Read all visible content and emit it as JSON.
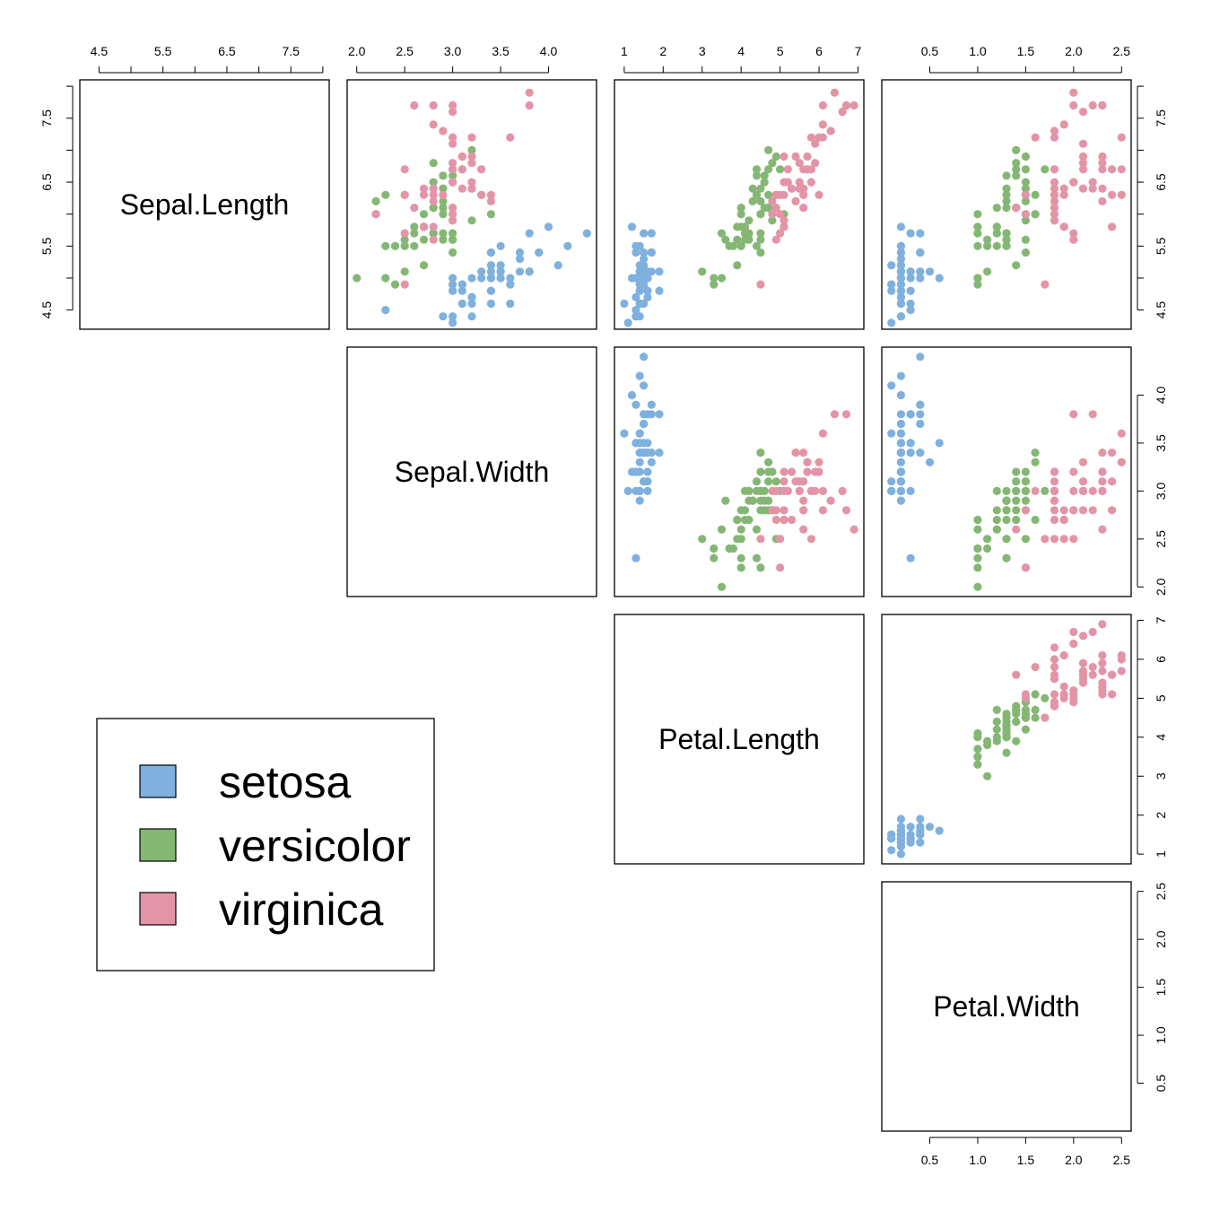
{
  "chart_data": {
    "type": "scatter",
    "title": "",
    "variables": [
      {
        "name": "Sepal.Length",
        "lim": [
          4.2,
          8.1
        ],
        "ticks": [
          "4.5",
          "5.5",
          "6.5",
          "7.5"
        ],
        "minor_ticks": [
          4.5,
          5,
          5.5,
          6,
          6.5,
          7,
          7.5,
          8
        ]
      },
      {
        "name": "Sepal.Width",
        "lim": [
          1.9,
          4.5
        ],
        "ticks": [
          "2.0",
          "2.5",
          "3.0",
          "3.5",
          "4.0"
        ],
        "minor_ticks": [
          2,
          2.5,
          3,
          3.5,
          4
        ]
      },
      {
        "name": "Petal.Length",
        "lim": [
          0.75,
          7.15
        ],
        "ticks": [
          "1",
          "2",
          "3",
          "4",
          "5",
          "6",
          "7"
        ],
        "minor_ticks": [
          1,
          2,
          3,
          4,
          5,
          6,
          7
        ]
      },
      {
        "name": "Petal.Width",
        "lim": [
          0.0,
          2.6
        ],
        "ticks": [
          "0.5",
          "1.0",
          "1.5",
          "2.0",
          "2.5"
        ],
        "minor_ticks": [
          0.5,
          1,
          1.5,
          2,
          2.5
        ]
      }
    ],
    "layout": "upper-triangle pairs; variable names on diagonal",
    "legend": {
      "position": "bottom-left",
      "entries": [
        {
          "name": "setosa",
          "color": "#7FB0DE"
        },
        {
          "name": "versicolor",
          "color": "#85B774"
        },
        {
          "name": "virginica",
          "color": "#E394A7"
        }
      ]
    },
    "point_columns": [
      "Sepal.Length",
      "Sepal.Width",
      "Petal.Length",
      "Petal.Width",
      "species_index"
    ],
    "points": [
      [
        5.1,
        3.5,
        1.4,
        0.2,
        0
      ],
      [
        4.9,
        3.0,
        1.4,
        0.2,
        0
      ],
      [
        4.7,
        3.2,
        1.3,
        0.2,
        0
      ],
      [
        4.6,
        3.1,
        1.5,
        0.2,
        0
      ],
      [
        5.0,
        3.6,
        1.4,
        0.2,
        0
      ],
      [
        5.4,
        3.9,
        1.7,
        0.4,
        0
      ],
      [
        4.6,
        3.4,
        1.4,
        0.3,
        0
      ],
      [
        5.0,
        3.4,
        1.5,
        0.2,
        0
      ],
      [
        4.4,
        2.9,
        1.4,
        0.2,
        0
      ],
      [
        4.9,
        3.1,
        1.5,
        0.1,
        0
      ],
      [
        5.4,
        3.7,
        1.5,
        0.2,
        0
      ],
      [
        4.8,
        3.4,
        1.6,
        0.2,
        0
      ],
      [
        4.8,
        3.0,
        1.4,
        0.1,
        0
      ],
      [
        4.3,
        3.0,
        1.1,
        0.1,
        0
      ],
      [
        5.8,
        4.0,
        1.2,
        0.2,
        0
      ],
      [
        5.7,
        4.4,
        1.5,
        0.4,
        0
      ],
      [
        5.4,
        3.9,
        1.3,
        0.4,
        0
      ],
      [
        5.1,
        3.5,
        1.4,
        0.3,
        0
      ],
      [
        5.7,
        3.8,
        1.7,
        0.3,
        0
      ],
      [
        5.1,
        3.8,
        1.5,
        0.3,
        0
      ],
      [
        5.4,
        3.4,
        1.7,
        0.2,
        0
      ],
      [
        5.1,
        3.7,
        1.5,
        0.4,
        0
      ],
      [
        4.6,
        3.6,
        1.0,
        0.2,
        0
      ],
      [
        5.1,
        3.3,
        1.7,
        0.5,
        0
      ],
      [
        4.8,
        3.4,
        1.9,
        0.2,
        0
      ],
      [
        5.0,
        3.0,
        1.6,
        0.2,
        0
      ],
      [
        5.0,
        3.4,
        1.6,
        0.4,
        0
      ],
      [
        5.2,
        3.5,
        1.5,
        0.2,
        0
      ],
      [
        5.2,
        3.4,
        1.4,
        0.2,
        0
      ],
      [
        4.7,
        3.2,
        1.6,
        0.2,
        0
      ],
      [
        4.8,
        3.1,
        1.6,
        0.2,
        0
      ],
      [
        5.4,
        3.4,
        1.5,
        0.4,
        0
      ],
      [
        5.2,
        4.1,
        1.5,
        0.1,
        0
      ],
      [
        5.5,
        4.2,
        1.4,
        0.2,
        0
      ],
      [
        4.9,
        3.1,
        1.5,
        0.2,
        0
      ],
      [
        5.0,
        3.2,
        1.2,
        0.2,
        0
      ],
      [
        5.5,
        3.5,
        1.3,
        0.2,
        0
      ],
      [
        4.9,
        3.6,
        1.4,
        0.1,
        0
      ],
      [
        4.4,
        3.0,
        1.3,
        0.2,
        0
      ],
      [
        5.1,
        3.4,
        1.5,
        0.2,
        0
      ],
      [
        5.0,
        3.5,
        1.3,
        0.3,
        0
      ],
      [
        4.5,
        2.3,
        1.3,
        0.3,
        0
      ],
      [
        4.4,
        3.2,
        1.3,
        0.2,
        0
      ],
      [
        5.0,
        3.5,
        1.6,
        0.6,
        0
      ],
      [
        5.1,
        3.8,
        1.9,
        0.4,
        0
      ],
      [
        4.8,
        3.0,
        1.4,
        0.3,
        0
      ],
      [
        5.1,
        3.8,
        1.6,
        0.2,
        0
      ],
      [
        4.6,
        3.2,
        1.4,
        0.2,
        0
      ],
      [
        5.3,
        3.7,
        1.5,
        0.2,
        0
      ],
      [
        5.0,
        3.3,
        1.4,
        0.2,
        0
      ],
      [
        7.0,
        3.2,
        4.7,
        1.4,
        1
      ],
      [
        6.4,
        3.2,
        4.5,
        1.5,
        1
      ],
      [
        6.9,
        3.1,
        4.9,
        1.5,
        1
      ],
      [
        5.5,
        2.3,
        4.0,
        1.3,
        1
      ],
      [
        6.5,
        2.8,
        4.6,
        1.5,
        1
      ],
      [
        5.7,
        2.8,
        4.5,
        1.3,
        1
      ],
      [
        6.3,
        3.3,
        4.7,
        1.6,
        1
      ],
      [
        4.9,
        2.4,
        3.3,
        1.0,
        1
      ],
      [
        6.6,
        2.9,
        4.6,
        1.3,
        1
      ],
      [
        5.2,
        2.7,
        3.9,
        1.4,
        1
      ],
      [
        5.0,
        2.0,
        3.5,
        1.0,
        1
      ],
      [
        5.9,
        3.0,
        4.2,
        1.5,
        1
      ],
      [
        6.0,
        2.2,
        4.0,
        1.0,
        1
      ],
      [
        6.1,
        2.9,
        4.7,
        1.4,
        1
      ],
      [
        5.6,
        2.9,
        3.6,
        1.3,
        1
      ],
      [
        6.7,
        3.1,
        4.4,
        1.4,
        1
      ],
      [
        5.6,
        3.0,
        4.5,
        1.5,
        1
      ],
      [
        5.8,
        2.7,
        4.1,
        1.0,
        1
      ],
      [
        6.2,
        2.2,
        4.5,
        1.5,
        1
      ],
      [
        5.6,
        2.5,
        3.9,
        1.1,
        1
      ],
      [
        5.9,
        3.2,
        4.8,
        1.8,
        1
      ],
      [
        6.1,
        2.8,
        4.0,
        1.3,
        1
      ],
      [
        6.3,
        2.5,
        4.9,
        1.5,
        1
      ],
      [
        6.1,
        2.8,
        4.7,
        1.2,
        1
      ],
      [
        6.4,
        2.9,
        4.3,
        1.3,
        1
      ],
      [
        6.6,
        3.0,
        4.4,
        1.4,
        1
      ],
      [
        6.8,
        2.8,
        4.8,
        1.4,
        1
      ],
      [
        6.7,
        3.0,
        5.0,
        1.7,
        1
      ],
      [
        6.0,
        2.9,
        4.5,
        1.5,
        1
      ],
      [
        5.7,
        2.6,
        3.5,
        1.0,
        1
      ],
      [
        5.5,
        2.4,
        3.8,
        1.1,
        1
      ],
      [
        5.5,
        2.4,
        3.7,
        1.0,
        1
      ],
      [
        5.8,
        2.7,
        3.9,
        1.2,
        1
      ],
      [
        6.0,
        2.7,
        5.1,
        1.6,
        1
      ],
      [
        5.4,
        3.0,
        4.5,
        1.5,
        1
      ],
      [
        6.0,
        3.4,
        4.5,
        1.6,
        1
      ],
      [
        6.7,
        3.1,
        4.7,
        1.5,
        1
      ],
      [
        6.3,
        2.3,
        4.4,
        1.3,
        1
      ],
      [
        5.6,
        3.0,
        4.1,
        1.3,
        1
      ],
      [
        5.5,
        2.5,
        4.0,
        1.3,
        1
      ],
      [
        5.5,
        2.6,
        4.4,
        1.2,
        1
      ],
      [
        6.1,
        3.0,
        4.6,
        1.4,
        1
      ],
      [
        5.8,
        2.6,
        4.0,
        1.2,
        1
      ],
      [
        5.0,
        2.3,
        3.3,
        1.0,
        1
      ],
      [
        5.6,
        2.7,
        4.2,
        1.3,
        1
      ],
      [
        5.7,
        3.0,
        4.2,
        1.2,
        1
      ],
      [
        5.7,
        2.9,
        4.2,
        1.3,
        1
      ],
      [
        6.2,
        2.9,
        4.3,
        1.3,
        1
      ],
      [
        5.1,
        2.5,
        3.0,
        1.1,
        1
      ],
      [
        5.7,
        2.8,
        4.1,
        1.3,
        1
      ],
      [
        6.3,
        3.3,
        6.0,
        2.5,
        2
      ],
      [
        5.8,
        2.7,
        5.1,
        1.9,
        2
      ],
      [
        7.1,
        3.0,
        5.9,
        2.1,
        2
      ],
      [
        6.3,
        2.9,
        5.6,
        1.8,
        2
      ],
      [
        6.5,
        3.0,
        5.8,
        2.2,
        2
      ],
      [
        7.6,
        3.0,
        6.6,
        2.1,
        2
      ],
      [
        4.9,
        2.5,
        4.5,
        1.7,
        2
      ],
      [
        7.3,
        2.9,
        6.3,
        1.8,
        2
      ],
      [
        6.7,
        2.5,
        5.8,
        1.8,
        2
      ],
      [
        7.2,
        3.6,
        6.1,
        2.5,
        2
      ],
      [
        6.5,
        3.2,
        5.1,
        2.0,
        2
      ],
      [
        6.4,
        2.7,
        5.3,
        1.9,
        2
      ],
      [
        6.8,
        3.0,
        5.5,
        2.1,
        2
      ],
      [
        5.7,
        2.5,
        5.0,
        2.0,
        2
      ],
      [
        5.8,
        2.8,
        5.1,
        2.4,
        2
      ],
      [
        6.4,
        3.2,
        5.3,
        2.3,
        2
      ],
      [
        6.5,
        3.0,
        5.5,
        1.8,
        2
      ],
      [
        7.7,
        3.8,
        6.7,
        2.2,
        2
      ],
      [
        7.7,
        2.6,
        6.9,
        2.3,
        2
      ],
      [
        6.0,
        2.2,
        5.0,
        1.5,
        2
      ],
      [
        6.9,
        3.2,
        5.7,
        2.3,
        2
      ],
      [
        5.6,
        2.8,
        4.9,
        2.0,
        2
      ],
      [
        7.7,
        2.8,
        6.7,
        2.0,
        2
      ],
      [
        6.3,
        2.7,
        4.9,
        1.8,
        2
      ],
      [
        6.7,
        3.3,
        5.7,
        2.1,
        2
      ],
      [
        7.2,
        3.2,
        6.0,
        1.8,
        2
      ],
      [
        6.2,
        2.8,
        4.8,
        1.8,
        2
      ],
      [
        6.1,
        3.0,
        4.9,
        1.8,
        2
      ],
      [
        6.4,
        2.8,
        5.6,
        2.1,
        2
      ],
      [
        7.2,
        3.0,
        5.8,
        1.6,
        2
      ],
      [
        7.4,
        2.8,
        6.1,
        1.9,
        2
      ],
      [
        7.9,
        3.8,
        6.4,
        2.0,
        2
      ],
      [
        6.4,
        2.8,
        5.6,
        2.2,
        2
      ],
      [
        6.3,
        2.8,
        5.1,
        1.5,
        2
      ],
      [
        6.1,
        2.6,
        5.6,
        1.4,
        2
      ],
      [
        7.7,
        3.0,
        6.1,
        2.3,
        2
      ],
      [
        6.3,
        3.4,
        5.6,
        2.4,
        2
      ],
      [
        6.4,
        3.1,
        5.5,
        1.8,
        2
      ],
      [
        6.0,
        3.0,
        4.8,
        1.8,
        2
      ],
      [
        6.9,
        3.1,
        5.4,
        2.1,
        2
      ],
      [
        6.7,
        3.1,
        5.6,
        2.4,
        2
      ],
      [
        6.9,
        3.1,
        5.1,
        2.3,
        2
      ],
      [
        5.8,
        2.7,
        5.1,
        1.9,
        2
      ],
      [
        6.8,
        3.2,
        5.9,
        2.3,
        2
      ],
      [
        6.7,
        3.3,
        5.7,
        2.5,
        2
      ],
      [
        6.7,
        3.0,
        5.2,
        2.3,
        2
      ],
      [
        6.3,
        2.5,
        5.0,
        1.9,
        2
      ],
      [
        6.5,
        3.0,
        5.2,
        2.0,
        2
      ],
      [
        6.2,
        3.4,
        5.4,
        2.3,
        2
      ],
      [
        5.9,
        3.0,
        5.1,
        1.8,
        2
      ]
    ]
  }
}
